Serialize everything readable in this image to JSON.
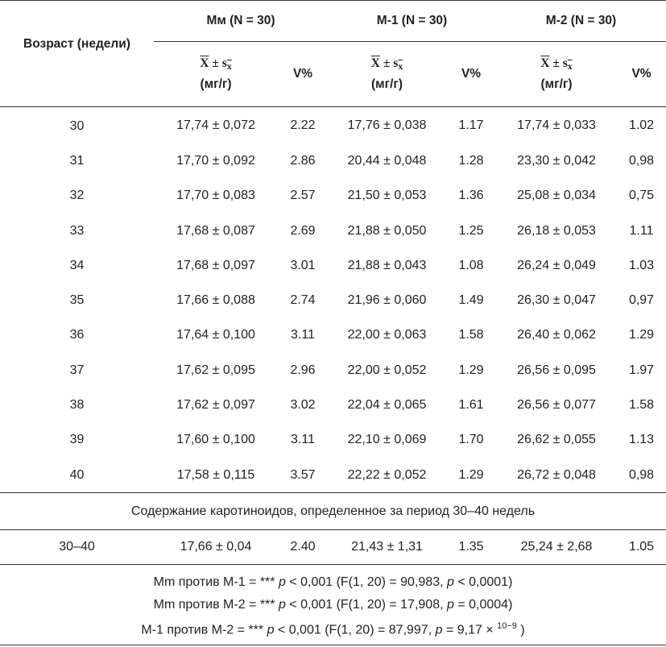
{
  "headers": {
    "age": "Возраст (недели)",
    "groups": [
      "Мм (N = 30)",
      "М-1 (N = 30)",
      "М-2 (N = 30)"
    ],
    "mean_symbol": "X",
    "pm": "±",
    "s_symbol": "s",
    "s_sub": "x",
    "unit": "(мг/г)",
    "cv": "V%"
  },
  "rows": [
    {
      "age": "30",
      "mm": "17,74 ± 0,072",
      "mm_v": "2.22",
      "m1": "17,76 ± 0,038",
      "m1_v": "1.17",
      "m2": "17,74 ± 0,033",
      "m2_v": "1.02"
    },
    {
      "age": "31",
      "mm": "17,70 ± 0,092",
      "mm_v": "2.86",
      "m1": "20,44 ± 0,048",
      "m1_v": "1.28",
      "m2": "23,30 ± 0,042",
      "m2_v": "0,98"
    },
    {
      "age": "32",
      "mm": "17,70 ± 0,083",
      "mm_v": "2.57",
      "m1": "21,50 ± 0,053",
      "m1_v": "1.36",
      "m2": "25,08 ± 0,034",
      "m2_v": "0,75"
    },
    {
      "age": "33",
      "mm": "17,68 ± 0,087",
      "mm_v": "2.69",
      "m1": "21,88 ± 0,050",
      "m1_v": "1.25",
      "m2": "26,18 ± 0,053",
      "m2_v": "1.11"
    },
    {
      "age": "34",
      "mm": "17,68 ± 0,097",
      "mm_v": "3.01",
      "m1": "21,88 ± 0,043",
      "m1_v": "1.08",
      "m2": "26,24 ± 0,049",
      "m2_v": "1.03"
    },
    {
      "age": "35",
      "mm": "17,66 ± 0,088",
      "mm_v": "2.74",
      "m1": "21,96 ± 0,060",
      "m1_v": "1.49",
      "m2": "26,30 ± 0,047",
      "m2_v": "0,97"
    },
    {
      "age": "36",
      "mm": "17,64 ± 0,100",
      "mm_v": "3.11",
      "m1": "22,00 ± 0,063",
      "m1_v": "1.58",
      "m2": "26,40 ± 0,062",
      "m2_v": "1.29"
    },
    {
      "age": "37",
      "mm": "17,62 ± 0,095",
      "mm_v": "2.96",
      "m1": "22,00 ± 0,052",
      "m1_v": "1.29",
      "m2": "26,56 ± 0,095",
      "m2_v": "1.97"
    },
    {
      "age": "38",
      "mm": "17,62 ± 0,097",
      "mm_v": "3.02",
      "m1": "22,04 ± 0,065",
      "m1_v": "1.61",
      "m2": "26,56 ± 0,077",
      "m2_v": "1.58"
    },
    {
      "age": "39",
      "mm": "17,60 ± 0,100",
      "mm_v": "3.11",
      "m1": "22,10 ± 0,069",
      "m1_v": "1.70",
      "m2": "26,62 ± 0,055",
      "m2_v": "1.13"
    },
    {
      "age": "40",
      "mm": "17,58 ± 0,115",
      "mm_v": "3.57",
      "m1": "22,22 ± 0,052",
      "m1_v": "1.29",
      "m2": "26,72 ± 0,048",
      "m2_v": "0,98"
    }
  ],
  "caption": "Содержание каротиноидов, определенное за период 30–40 недель",
  "summary": {
    "age": "30–40",
    "mm": "17,66 ± 0,04",
    "mm_v": "2.40",
    "m1": "21,43 ± 1,31",
    "m1_v": "1.35",
    "m2": "25,24 ± 2,68",
    "m2_v": "1.05"
  },
  "notes": [
    {
      "a": "Mm против М-1 = *** ",
      "p1": "p",
      "b": " < 0,001 (F(1, 20) = 90,983, ",
      "p2": "p",
      "c": " < 0,0001)",
      "sup": "",
      "d": ""
    },
    {
      "a": "Mm против М-2 = *** ",
      "p1": "p",
      "b": " < 0,001 (F(1, 20) = 17,908, ",
      "p2": "p",
      "c": " = 0,0004)",
      "sup": "",
      "d": ""
    },
    {
      "a": "М-1 против М-2 = *** ",
      "p1": "p",
      "b": " < 0,001 (F(1, 20) = 87,997, ",
      "p2": "p",
      "c": " = 9,17 × ",
      "sup": "10−9",
      "d": " )"
    }
  ]
}
